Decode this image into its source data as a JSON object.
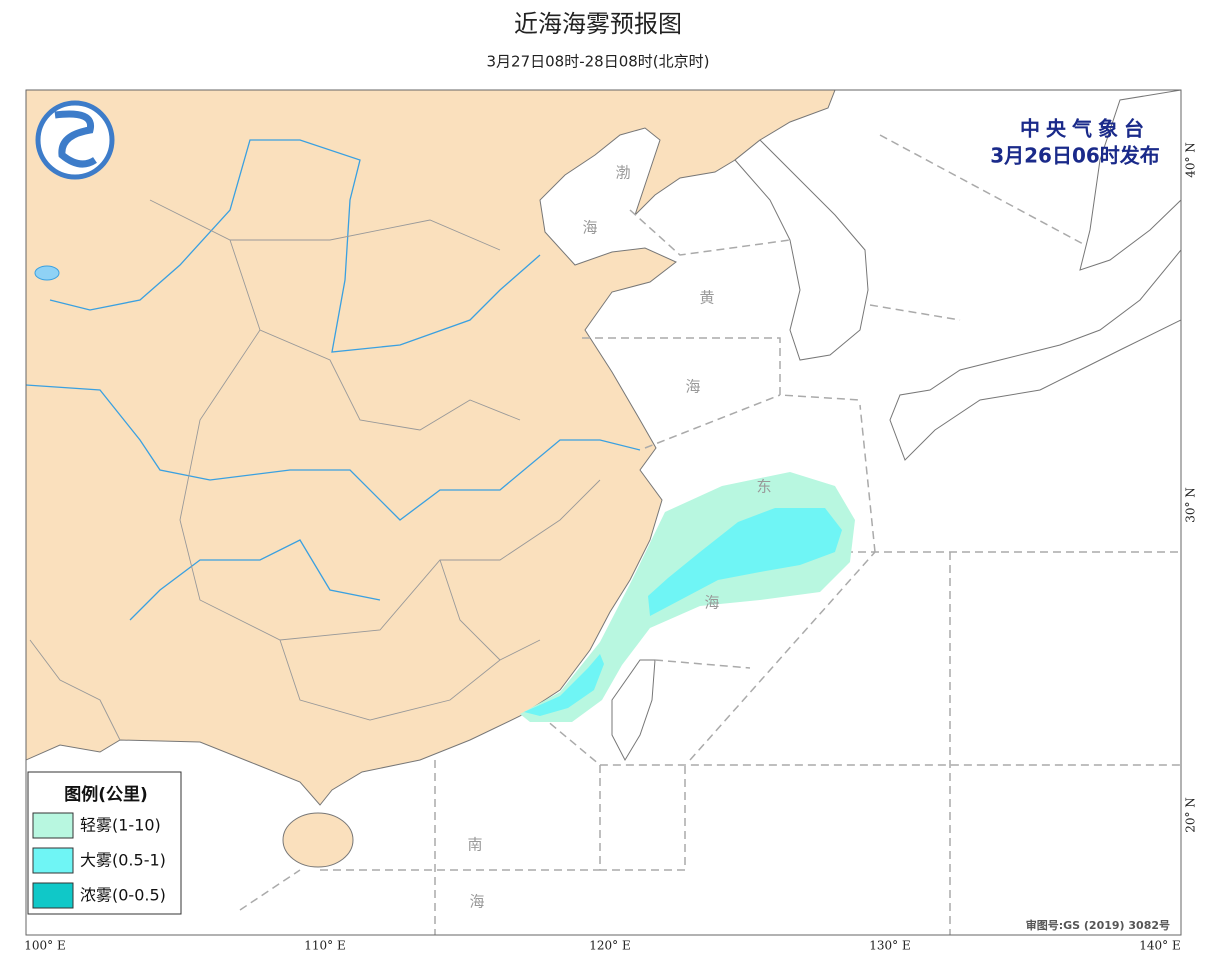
{
  "header": {
    "title": "近海海雾预报图",
    "subtitle": "3月27日08时-28日08时(北京时)"
  },
  "issuer": {
    "name": "中央气象台",
    "time": "3月26日06时发布"
  },
  "sea_labels": [
    "渤",
    "海",
    "黄",
    "海",
    "东",
    "海",
    "南",
    "海"
  ],
  "legend": {
    "title": "图例(公里)",
    "items": [
      "轻雾(1-10)",
      "大雾(0.5-1)",
      "浓雾(0-0.5)"
    ]
  },
  "axes": {
    "longitude": [
      "100° E",
      "110° E",
      "120° E",
      "130° E",
      "140° E"
    ],
    "latitude": [
      "20° N",
      "30° N",
      "40° N"
    ]
  },
  "footer": "审图号:GS (2019) 3082号"
}
